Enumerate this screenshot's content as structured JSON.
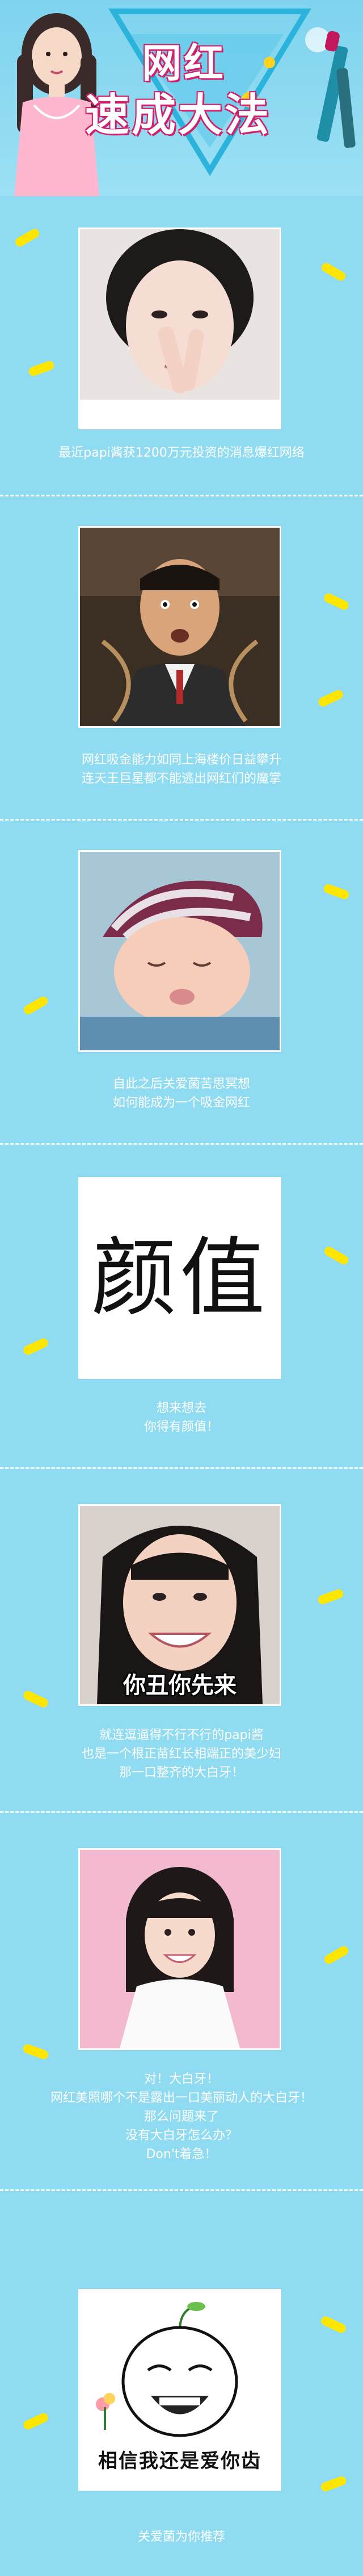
{
  "header": {
    "title_line1": "网红",
    "title_line2": "速成大法"
  },
  "sections": [
    {
      "id": "papi",
      "caption_lines": [
        "最近papi酱获1200万元投资的消息爆红网络"
      ]
    },
    {
      "id": "stephen",
      "caption_lines": [
        "网红吸金能力如同上海楼价日益攀升",
        "连天王巨星都不能逃出网红们的魔掌"
      ]
    },
    {
      "id": "baby",
      "caption_lines": [
        "自此之后关爱菌苦思冥想",
        "如何能成为一个吸金网红"
      ]
    },
    {
      "id": "yanzhi",
      "word": "颜值",
      "caption_lines": [
        "想来想去",
        "你得有颜值！"
      ]
    },
    {
      "id": "ugly",
      "overlay": "你丑你先来",
      "caption_lines": [
        "就连逗逼得不行不行的papi酱",
        "也是一个根正苗红长相端正的美少妇",
        "那一口整齐的大白牙！"
      ]
    },
    {
      "id": "girl",
      "caption_lines": [
        "对！大白牙！",
        "网红美照哪个不是露出一口美丽动人的大白牙！",
        "那么问题来了",
        "没有大白牙怎么办？",
        "Don't着急！"
      ]
    },
    {
      "id": "meme",
      "overlay": "相信我还是爱你齿",
      "caption_lines": [
        "关爱菌为你推荐"
      ]
    }
  ],
  "colors": {
    "background": "#8fdcf2",
    "accent_pink": "#d21f6a",
    "streak_yellow": "#ffe600"
  }
}
